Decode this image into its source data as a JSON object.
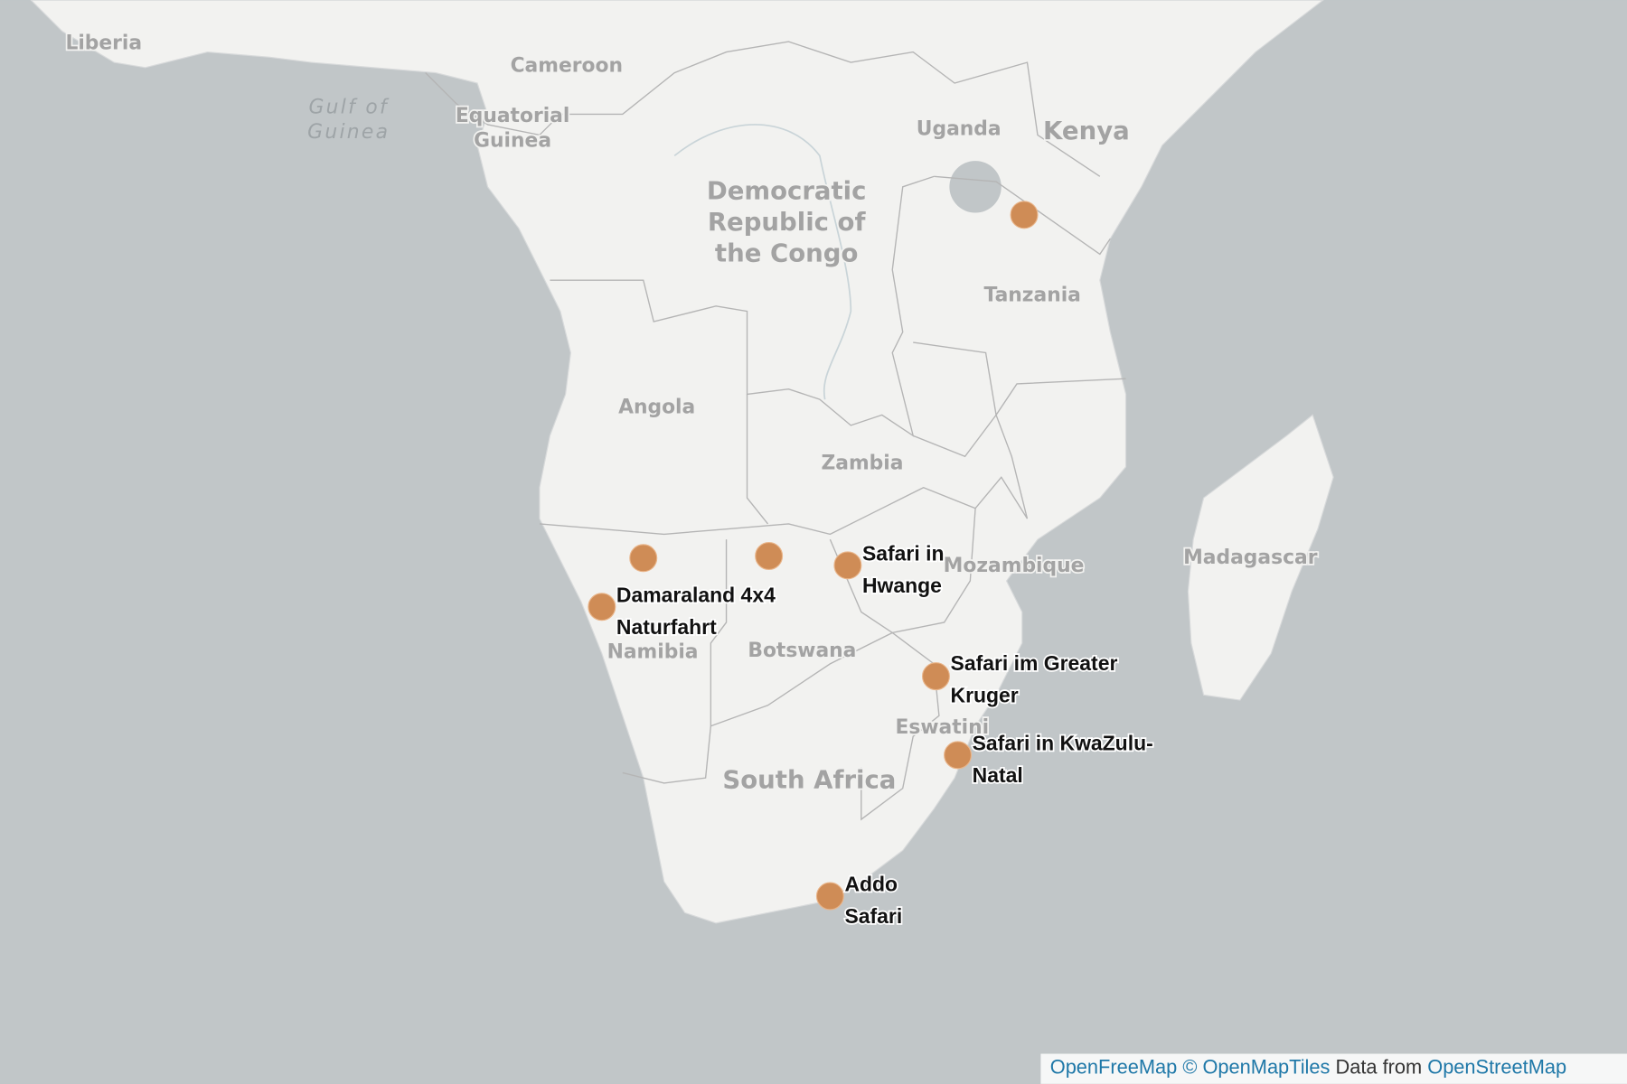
{
  "country_labels": [
    [
      "Liberia"
    ],
    [
      "Cameroon"
    ],
    [
      "Gulf of",
      "Guinea"
    ],
    [
      "Equatorial",
      "Guinea"
    ],
    [
      "Uganda"
    ],
    [
      "Kenya"
    ],
    [
      "Democratic",
      "Republic of",
      "the Congo"
    ],
    [
      "Tanzania"
    ],
    [
      "Angola"
    ],
    [
      "Zambia"
    ],
    [
      "Mozambique"
    ],
    [
      "Madagascar"
    ],
    [
      "Namibia"
    ],
    [
      "Botswana"
    ],
    [
      "Eswatini"
    ],
    [
      "South Africa"
    ]
  ],
  "places": [
    [
      "Safari in",
      "Hwange"
    ],
    [
      "Damaraland 4x4",
      "Naturfahrt"
    ],
    [
      "Safari im Greater",
      "Kruger"
    ],
    [
      "Safari in KwaZulu-",
      "Natal"
    ],
    [
      "Addo",
      "Safari"
    ]
  ],
  "attribution": {
    "openfreemap": "OpenFreeMap",
    "openmaptiles": "© OpenMapTiles",
    "data_from": "Data from",
    "openstreetmap": "OpenStreetMap"
  }
}
